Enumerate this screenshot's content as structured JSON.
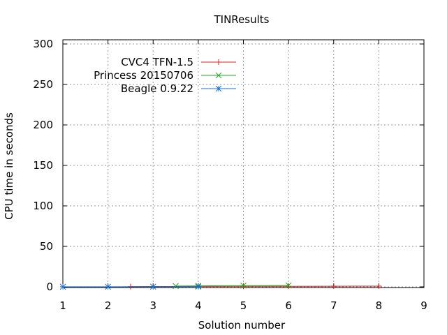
{
  "chart_data": {
    "type": "line",
    "title": "TINResults",
    "xlabel": "Solution number",
    "ylabel": "CPU time in seconds",
    "xlim": [
      1,
      9
    ],
    "ylim": [
      0,
      300
    ],
    "xticks": [
      "1",
      "2",
      "3",
      "4",
      "5",
      "6",
      "7",
      "8",
      "9"
    ],
    "yticks": [
      "0",
      "50",
      "100",
      "150",
      "200",
      "250",
      "300"
    ],
    "grid": true,
    "legend_position": "top-left",
    "series": [
      {
        "name": "CVC4 TFN-1.5",
        "color": "#e41a1c",
        "marker": "plus",
        "x": [
          2.5,
          3,
          4,
          5,
          6,
          7,
          8
        ],
        "y": [
          0.3,
          0.4,
          0.5,
          0.6,
          0.7,
          0.8,
          0.9
        ]
      },
      {
        "name": "Princess 20150706",
        "color": "#1fa81f",
        "marker": "cross",
        "x": [
          3.5,
          4,
          5,
          6
        ],
        "y": [
          1.0,
          1.2,
          1.5,
          1.8
        ]
      },
      {
        "name": "Beagle 0.9.22",
        "color": "#1a6fcf",
        "marker": "star",
        "x": [
          1,
          2,
          3,
          4
        ],
        "y": [
          0.1,
          0.1,
          0.2,
          0.3
        ]
      }
    ]
  }
}
